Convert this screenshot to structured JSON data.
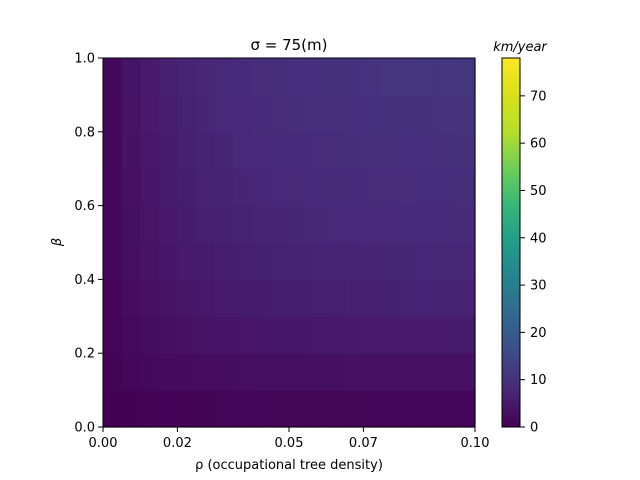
{
  "chart_data": {
    "type": "heatmap",
    "title": "σ = 75(m)",
    "xlabel": "ρ (occupational tree density)",
    "ylabel": "β",
    "colorbar_label": "km/year",
    "colormap": "viridis",
    "color_range": [
      0,
      78
    ],
    "xlim": [
      0.0,
      0.1
    ],
    "ylim": [
      0.0,
      1.0
    ],
    "x_ticks": [
      0.0,
      0.02,
      0.05,
      0.07,
      0.1
    ],
    "x_tick_labels": [
      "0.00",
      "0.02",
      "0.05",
      "0.07",
      "0.10"
    ],
    "y_ticks": [
      0.0,
      0.2,
      0.4,
      0.6,
      0.8,
      1.0
    ],
    "y_tick_labels": [
      "0.0",
      "0.2",
      "0.4",
      "0.6",
      "0.8",
      "1.0"
    ],
    "colorbar_ticks": [
      0,
      10,
      20,
      30,
      40,
      50,
      60,
      70
    ],
    "colorbar_tick_labels": [
      "0",
      "10",
      "20",
      "30",
      "40",
      "50",
      "60",
      "70"
    ],
    "x": [
      0.0,
      0.005,
      0.01,
      0.015,
      0.02,
      0.025,
      0.03,
      0.035,
      0.04,
      0.045,
      0.05,
      0.055,
      0.06,
      0.065,
      0.07,
      0.075,
      0.08,
      0.085,
      0.09,
      0.095
    ],
    "y": [
      0.0,
      0.1,
      0.2,
      0.3,
      0.4,
      0.5,
      0.6,
      0.7,
      0.8,
      0.9
    ],
    "z": [
      [
        0.0,
        0.2,
        0.3,
        0.4,
        0.5,
        0.5,
        0.6,
        0.6,
        0.6,
        0.7,
        0.7,
        0.7,
        0.7,
        0.7,
        0.8,
        0.8,
        0.8,
        0.8,
        0.8,
        0.8
      ],
      [
        0.5,
        1.2,
        1.6,
        1.9,
        2.1,
        2.3,
        2.5,
        2.6,
        2.7,
        2.8,
        2.9,
        3.0,
        3.0,
        3.1,
        3.1,
        3.2,
        3.2,
        3.2,
        3.3,
        3.3
      ],
      [
        0.8,
        1.8,
        2.5,
        3.0,
        3.4,
        3.7,
        3.9,
        4.1,
        4.3,
        4.4,
        4.5,
        4.6,
        4.7,
        4.8,
        4.9,
        5.0,
        5.0,
        5.1,
        5.1,
        5.2
      ],
      [
        1.0,
        2.3,
        3.1,
        3.7,
        4.2,
        4.6,
        4.9,
        5.2,
        5.4,
        5.6,
        5.8,
        5.9,
        6.0,
        6.1,
        6.2,
        6.3,
        6.4,
        6.4,
        6.5,
        6.5
      ],
      [
        1.2,
        2.7,
        3.6,
        4.3,
        4.9,
        5.3,
        5.7,
        6.0,
        6.3,
        6.5,
        6.7,
        6.9,
        7.0,
        7.1,
        7.2,
        7.3,
        7.4,
        7.5,
        7.5,
        7.6
      ],
      [
        1.3,
        3.0,
        4.0,
        4.8,
        5.4,
        5.9,
        6.3,
        6.6,
        6.9,
        7.2,
        7.4,
        7.6,
        7.7,
        7.9,
        8.0,
        8.1,
        8.2,
        8.3,
        8.3,
        8.4
      ],
      [
        1.4,
        3.2,
        4.3,
        5.2,
        5.8,
        6.4,
        6.8,
        7.2,
        7.5,
        7.8,
        8.0,
        8.2,
        8.4,
        8.5,
        8.7,
        8.8,
        8.9,
        9.0,
        9.0,
        9.1
      ],
      [
        1.5,
        3.4,
        4.6,
        5.5,
        6.2,
        6.8,
        7.3,
        7.7,
        8.0,
        8.3,
        8.6,
        8.8,
        9.0,
        9.1,
        9.3,
        9.4,
        9.5,
        9.6,
        9.7,
        9.8
      ],
      [
        1.6,
        3.6,
        4.9,
        5.8,
        6.6,
        7.2,
        7.7,
        8.1,
        8.5,
        8.8,
        9.1,
        9.3,
        9.5,
        9.7,
        9.9,
        10.0,
        10.1,
        10.2,
        10.3,
        10.4
      ],
      [
        1.7,
        3.8,
        5.1,
        6.1,
        6.9,
        7.5,
        8.1,
        8.5,
        8.9,
        9.2,
        9.5,
        9.8,
        10.0,
        10.2,
        10.4,
        10.5,
        10.7,
        10.8,
        10.9,
        11.0
      ]
    ]
  }
}
